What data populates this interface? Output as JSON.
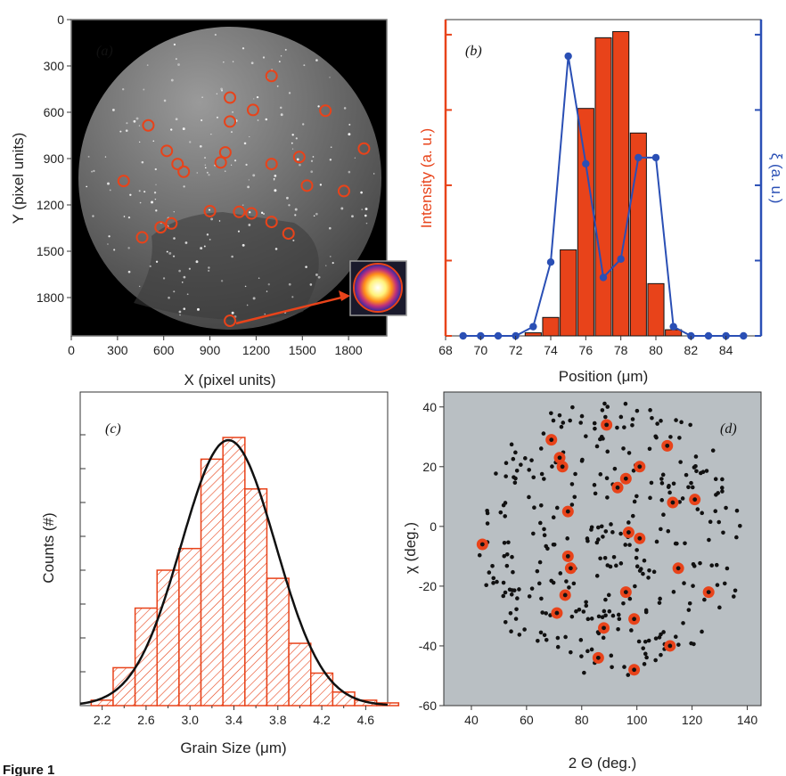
{
  "figure_label": "Figure 1",
  "colors": {
    "orange": "#e8431a",
    "blue": "#2a4fb5",
    "black": "#111111",
    "gray_bg": "#b9bfc3",
    "detector": "#6c6c6c"
  },
  "chart_data": [
    {
      "panel": "(a)",
      "type": "scatter",
      "xlabel": "X (pixel units)",
      "ylabel": "Y (pixel units)",
      "xlim": [
        0,
        2048
      ],
      "ylim": [
        0,
        2048
      ],
      "y_inverted": true,
      "xticks": [
        "0",
        "300",
        "600",
        "900",
        "1200",
        "1500",
        "1800"
      ],
      "yticks": [
        "0",
        "300",
        "600",
        "900",
        "1200",
        "1500",
        "1800"
      ],
      "marked_spots": {
        "x": [
          1300,
          1030,
          500,
          1180,
          1650,
          1030,
          620,
          1000,
          1900,
          690,
          730,
          1300,
          1480,
          970,
          340,
          1530,
          1770,
          900,
          1090,
          1170,
          1300,
          1410,
          650,
          580,
          460,
          1030
        ],
        "y": [
          365,
          505,
          685,
          585,
          590,
          660,
          850,
          860,
          835,
          935,
          985,
          935,
          890,
          925,
          1045,
          1075,
          1110,
          1240,
          1245,
          1255,
          1310,
          1385,
          1320,
          1345,
          1410,
          1950
        ]
      },
      "annotation": "inset: magnified diffraction spot"
    },
    {
      "panel": "(b)",
      "type": "bar",
      "xlabel": "Position (μm)",
      "ylabel_left": "Intensity (a. u.)",
      "ylabel_right": "ξ (a. u.)",
      "xlim": [
        68,
        86
      ],
      "xticks": [
        "68",
        "70",
        "72",
        "74",
        "76",
        "78",
        "80",
        "82",
        "84"
      ],
      "bars": {
        "x": [
          73,
          74,
          75,
          76,
          77,
          78,
          79,
          80,
          81
        ],
        "values": [
          0.01,
          0.06,
          0.28,
          0.74,
          0.97,
          0.99,
          0.66,
          0.17,
          0.02
        ]
      },
      "series": [
        {
          "x": [
            69,
            70,
            71,
            72,
            73,
            74,
            75,
            76,
            77,
            78,
            79,
            80,
            81,
            82,
            83,
            84,
            85
          ],
          "values": [
            0.0,
            0.0,
            0.0,
            0.0,
            0.03,
            0.24,
            0.91,
            0.56,
            0.19,
            0.25,
            0.58,
            0.58,
            0.03,
            0.0,
            0.0,
            0.0,
            0.0
          ]
        }
      ]
    },
    {
      "panel": "(c)",
      "type": "bar",
      "xlabel": "Grain Size (μm)",
      "ylabel": "Counts (#)",
      "xlim": [
        2.0,
        4.8
      ],
      "xticks": [
        "2.2",
        "2.4",
        "2.6",
        "2.8",
        "3.0",
        "3.2",
        "3.4",
        "3.6",
        "3.8",
        "4.0",
        "4.2",
        "4.4",
        "4.6"
      ],
      "bin_width": 0.2,
      "bins_left": [
        2.1,
        2.3,
        2.5,
        2.7,
        2.9,
        3.1,
        3.3,
        3.5,
        3.7,
        3.9,
        4.1,
        4.3,
        4.5,
        4.7
      ],
      "values": [
        0.02,
        0.14,
        0.36,
        0.5,
        0.58,
        0.91,
        0.99,
        0.8,
        0.47,
        0.23,
        0.12,
        0.05,
        0.02,
        0.01
      ],
      "fit": {
        "type": "gaussian",
        "mean": 3.35,
        "sigma": 0.43,
        "peak": 0.98
      }
    },
    {
      "panel": "(d)",
      "type": "scatter",
      "xlabel": "2 Θ (deg.)",
      "ylabel": "χ (deg.)",
      "xlim": [
        30,
        145
      ],
      "ylim": [
        -60,
        45
      ],
      "xticks": [
        "40",
        "60",
        "80",
        "100",
        "120",
        "140"
      ],
      "yticks": [
        "-60",
        "-40",
        "-20",
        "0",
        "20",
        "40"
      ],
      "background": "gray",
      "point_count": 330,
      "point_extent": {
        "x_range": [
          43,
          140
        ],
        "y_range": [
          -52,
          42
        ]
      },
      "highlighted": {
        "x": [
          89,
          69,
          72,
          73,
          93,
          96,
          101,
          111,
          75,
          113,
          121,
          44,
          97,
          101,
          75,
          76,
          115,
          126,
          74,
          96,
          71,
          99,
          88,
          112,
          86,
          99
        ],
        "y": [
          34,
          29,
          23,
          20,
          13,
          16,
          20,
          27,
          5,
          8,
          9,
          -6,
          -2,
          -4,
          -10,
          -14,
          -14,
          -22,
          -23,
          -22,
          -29,
          -31,
          -34,
          -40,
          -44,
          -48
        ]
      }
    }
  ]
}
